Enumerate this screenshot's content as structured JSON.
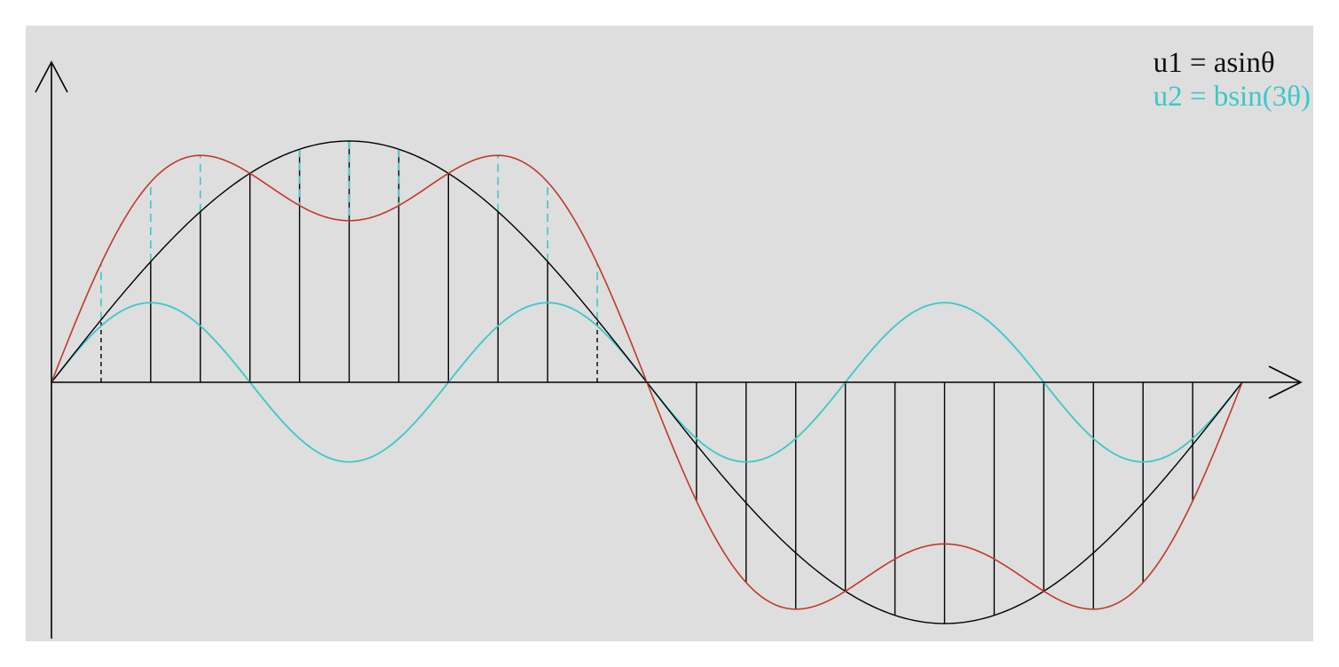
{
  "chart_data": {
    "type": "line",
    "title": "",
    "xlabel": "",
    "ylabel": "",
    "x_range_deg": [
      0,
      360
    ],
    "y_range": [
      -1,
      1.5
    ],
    "series": [
      {
        "name": "u1 = asinθ",
        "function": "a*sin(θ)",
        "a": 1,
        "color": "#000000",
        "values_at_degrees": {
          "0": 0,
          "90": 1,
          "180": 0,
          "270": -1,
          "360": 0
        }
      },
      {
        "name": "u2 = bsin(3θ)",
        "function": "b*sin(3θ)",
        "b": 0.33,
        "color": "#3cc8c8",
        "values_at_degrees": {
          "0": 0,
          "30": 0.33,
          "60": 0,
          "90": -0.33,
          "120": 0,
          "150": 0.33,
          "180": 0
        }
      },
      {
        "function": "asinθ + bsin(3θ)",
        "color": "#c0392b",
        "values_at_degrees": {
          "0": 0,
          "30": 0.83,
          "45": 0.94,
          "90": 0.67,
          "135": 0.94,
          "180": 0,
          "270": -0.67,
          "360": 0
        }
      }
    ],
    "vertical_hatch_step_deg": 15,
    "grid": false
  },
  "legend": {
    "u1": "u1 = asinθ",
    "u2": "u2 = bsin(3θ)"
  },
  "colors": {
    "background": "#dedede",
    "axis": "#000000",
    "u1": "#000000",
    "u2": "#3cc8c8",
    "sum": "#c0392b",
    "hatch_black": "#000000",
    "hatch_cyan": "#3cc8c8"
  }
}
